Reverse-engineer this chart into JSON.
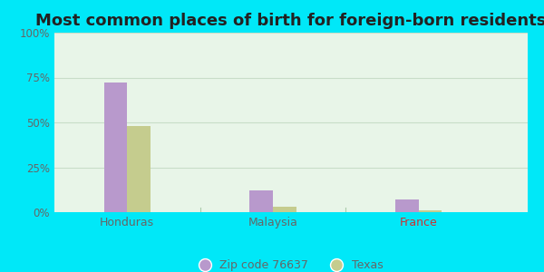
{
  "title": "Most common places of birth for foreign-born residents",
  "categories": [
    "Honduras",
    "Malaysia",
    "France"
  ],
  "zip_values": [
    72,
    12,
    7
  ],
  "texas_values": [
    48,
    3,
    1
  ],
  "zip_color": "#b899cc",
  "texas_color": "#c5cc8e",
  "zip_label": "Zip code 76637",
  "texas_label": "Texas",
  "background_outer": "#00e8f8",
  "background_inner_top": "#f0f8f0",
  "background_inner_bottom": "#d8f0d8",
  "ylim": [
    0,
    100
  ],
  "yticks": [
    0,
    25,
    50,
    75,
    100
  ],
  "ytick_labels": [
    "0%",
    "25%",
    "50%",
    "75%",
    "100%"
  ],
  "title_fontsize": 13,
  "bar_width": 0.32,
  "france_label_color": "#cc3333",
  "tick_label_color": "#666666",
  "divider_color": "#aaccaa",
  "grid_color": "#c8ddc8"
}
